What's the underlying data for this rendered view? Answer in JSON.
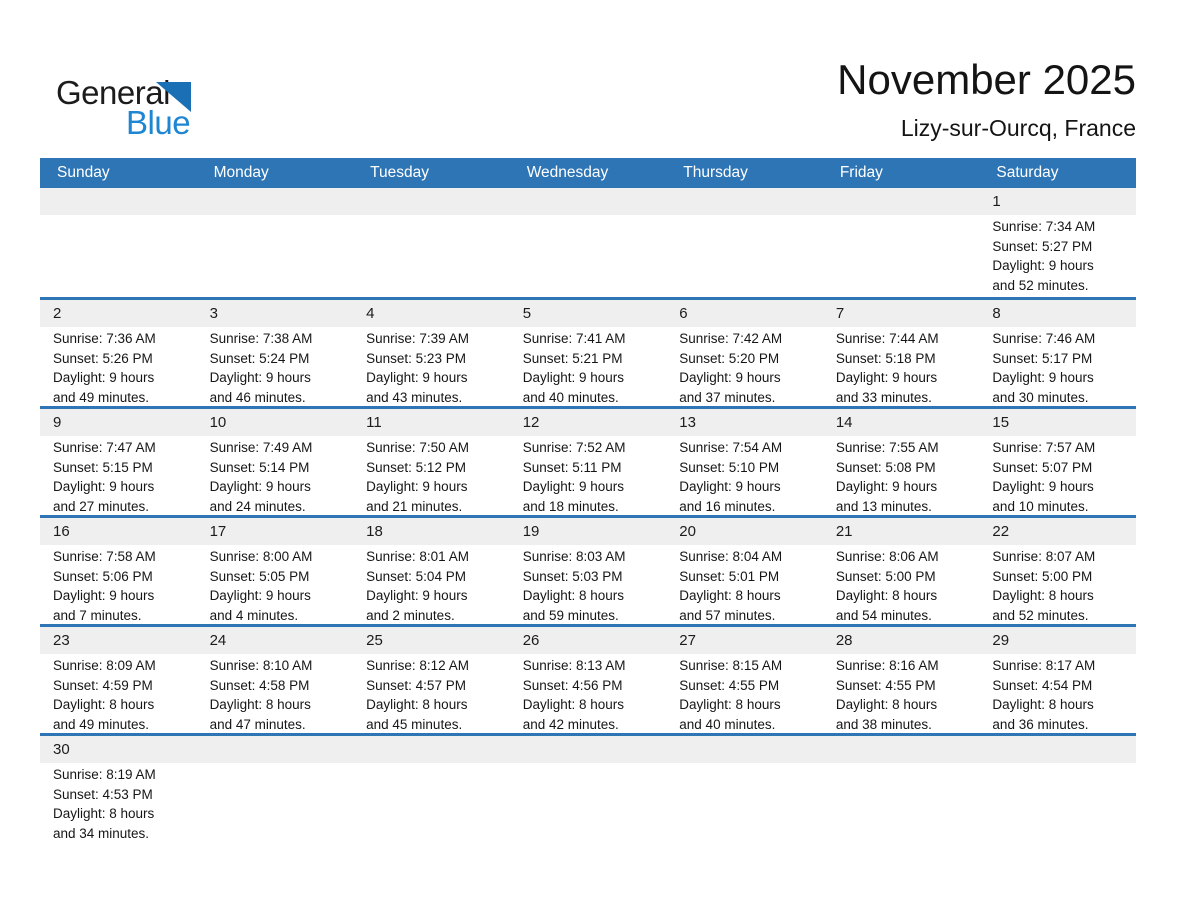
{
  "logo": {
    "part1": "General",
    "part2": "Blue",
    "triangle_color": "#1b6fb5",
    "blue_color": "#1e86d2"
  },
  "header": {
    "title": "November 2025",
    "subtitle": "Lizy-sur-Ourcq, France"
  },
  "colors": {
    "header_blue": "#2e75b5",
    "band_gray": "#efefef",
    "separator_blue": "#2e75b5"
  },
  "weekdays": [
    "Sunday",
    "Monday",
    "Tuesday",
    "Wednesday",
    "Thursday",
    "Friday",
    "Saturday"
  ],
  "weeks": [
    [
      null,
      null,
      null,
      null,
      null,
      null,
      {
        "day": "1",
        "sunrise": "Sunrise: 7:34 AM",
        "sunset": "Sunset: 5:27 PM",
        "daylight1": "Daylight: 9 hours",
        "daylight2": "and 52 minutes."
      }
    ],
    [
      {
        "day": "2",
        "sunrise": "Sunrise: 7:36 AM",
        "sunset": "Sunset: 5:26 PM",
        "daylight1": "Daylight: 9 hours",
        "daylight2": "and 49 minutes."
      },
      {
        "day": "3",
        "sunrise": "Sunrise: 7:38 AM",
        "sunset": "Sunset: 5:24 PM",
        "daylight1": "Daylight: 9 hours",
        "daylight2": "and 46 minutes."
      },
      {
        "day": "4",
        "sunrise": "Sunrise: 7:39 AM",
        "sunset": "Sunset: 5:23 PM",
        "daylight1": "Daylight: 9 hours",
        "daylight2": "and 43 minutes."
      },
      {
        "day": "5",
        "sunrise": "Sunrise: 7:41 AM",
        "sunset": "Sunset: 5:21 PM",
        "daylight1": "Daylight: 9 hours",
        "daylight2": "and 40 minutes."
      },
      {
        "day": "6",
        "sunrise": "Sunrise: 7:42 AM",
        "sunset": "Sunset: 5:20 PM",
        "daylight1": "Daylight: 9 hours",
        "daylight2": "and 37 minutes."
      },
      {
        "day": "7",
        "sunrise": "Sunrise: 7:44 AM",
        "sunset": "Sunset: 5:18 PM",
        "daylight1": "Daylight: 9 hours",
        "daylight2": "and 33 minutes."
      },
      {
        "day": "8",
        "sunrise": "Sunrise: 7:46 AM",
        "sunset": "Sunset: 5:17 PM",
        "daylight1": "Daylight: 9 hours",
        "daylight2": "and 30 minutes."
      }
    ],
    [
      {
        "day": "9",
        "sunrise": "Sunrise: 7:47 AM",
        "sunset": "Sunset: 5:15 PM",
        "daylight1": "Daylight: 9 hours",
        "daylight2": "and 27 minutes."
      },
      {
        "day": "10",
        "sunrise": "Sunrise: 7:49 AM",
        "sunset": "Sunset: 5:14 PM",
        "daylight1": "Daylight: 9 hours",
        "daylight2": "and 24 minutes."
      },
      {
        "day": "11",
        "sunrise": "Sunrise: 7:50 AM",
        "sunset": "Sunset: 5:12 PM",
        "daylight1": "Daylight: 9 hours",
        "daylight2": "and 21 minutes."
      },
      {
        "day": "12",
        "sunrise": "Sunrise: 7:52 AM",
        "sunset": "Sunset: 5:11 PM",
        "daylight1": "Daylight: 9 hours",
        "daylight2": "and 18 minutes."
      },
      {
        "day": "13",
        "sunrise": "Sunrise: 7:54 AM",
        "sunset": "Sunset: 5:10 PM",
        "daylight1": "Daylight: 9 hours",
        "daylight2": "and 16 minutes."
      },
      {
        "day": "14",
        "sunrise": "Sunrise: 7:55 AM",
        "sunset": "Sunset: 5:08 PM",
        "daylight1": "Daylight: 9 hours",
        "daylight2": "and 13 minutes."
      },
      {
        "day": "15",
        "sunrise": "Sunrise: 7:57 AM",
        "sunset": "Sunset: 5:07 PM",
        "daylight1": "Daylight: 9 hours",
        "daylight2": "and 10 minutes."
      }
    ],
    [
      {
        "day": "16",
        "sunrise": "Sunrise: 7:58 AM",
        "sunset": "Sunset: 5:06 PM",
        "daylight1": "Daylight: 9 hours",
        "daylight2": "and 7 minutes."
      },
      {
        "day": "17",
        "sunrise": "Sunrise: 8:00 AM",
        "sunset": "Sunset: 5:05 PM",
        "daylight1": "Daylight: 9 hours",
        "daylight2": "and 4 minutes."
      },
      {
        "day": "18",
        "sunrise": "Sunrise: 8:01 AM",
        "sunset": "Sunset: 5:04 PM",
        "daylight1": "Daylight: 9 hours",
        "daylight2": "and 2 minutes."
      },
      {
        "day": "19",
        "sunrise": "Sunrise: 8:03 AM",
        "sunset": "Sunset: 5:03 PM",
        "daylight1": "Daylight: 8 hours",
        "daylight2": "and 59 minutes."
      },
      {
        "day": "20",
        "sunrise": "Sunrise: 8:04 AM",
        "sunset": "Sunset: 5:01 PM",
        "daylight1": "Daylight: 8 hours",
        "daylight2": "and 57 minutes."
      },
      {
        "day": "21",
        "sunrise": "Sunrise: 8:06 AM",
        "sunset": "Sunset: 5:00 PM",
        "daylight1": "Daylight: 8 hours",
        "daylight2": "and 54 minutes."
      },
      {
        "day": "22",
        "sunrise": "Sunrise: 8:07 AM",
        "sunset": "Sunset: 5:00 PM",
        "daylight1": "Daylight: 8 hours",
        "daylight2": "and 52 minutes."
      }
    ],
    [
      {
        "day": "23",
        "sunrise": "Sunrise: 8:09 AM",
        "sunset": "Sunset: 4:59 PM",
        "daylight1": "Daylight: 8 hours",
        "daylight2": "and 49 minutes."
      },
      {
        "day": "24",
        "sunrise": "Sunrise: 8:10 AM",
        "sunset": "Sunset: 4:58 PM",
        "daylight1": "Daylight: 8 hours",
        "daylight2": "and 47 minutes."
      },
      {
        "day": "25",
        "sunrise": "Sunrise: 8:12 AM",
        "sunset": "Sunset: 4:57 PM",
        "daylight1": "Daylight: 8 hours",
        "daylight2": "and 45 minutes."
      },
      {
        "day": "26",
        "sunrise": "Sunrise: 8:13 AM",
        "sunset": "Sunset: 4:56 PM",
        "daylight1": "Daylight: 8 hours",
        "daylight2": "and 42 minutes."
      },
      {
        "day": "27",
        "sunrise": "Sunrise: 8:15 AM",
        "sunset": "Sunset: 4:55 PM",
        "daylight1": "Daylight: 8 hours",
        "daylight2": "and 40 minutes."
      },
      {
        "day": "28",
        "sunrise": "Sunrise: 8:16 AM",
        "sunset": "Sunset: 4:55 PM",
        "daylight1": "Daylight: 8 hours",
        "daylight2": "and 38 minutes."
      },
      {
        "day": "29",
        "sunrise": "Sunrise: 8:17 AM",
        "sunset": "Sunset: 4:54 PM",
        "daylight1": "Daylight: 8 hours",
        "daylight2": "and 36 minutes."
      }
    ],
    [
      {
        "day": "30",
        "sunrise": "Sunrise: 8:19 AM",
        "sunset": "Sunset: 4:53 PM",
        "daylight1": "Daylight: 8 hours",
        "daylight2": "and 34 minutes."
      },
      null,
      null,
      null,
      null,
      null,
      null
    ]
  ]
}
